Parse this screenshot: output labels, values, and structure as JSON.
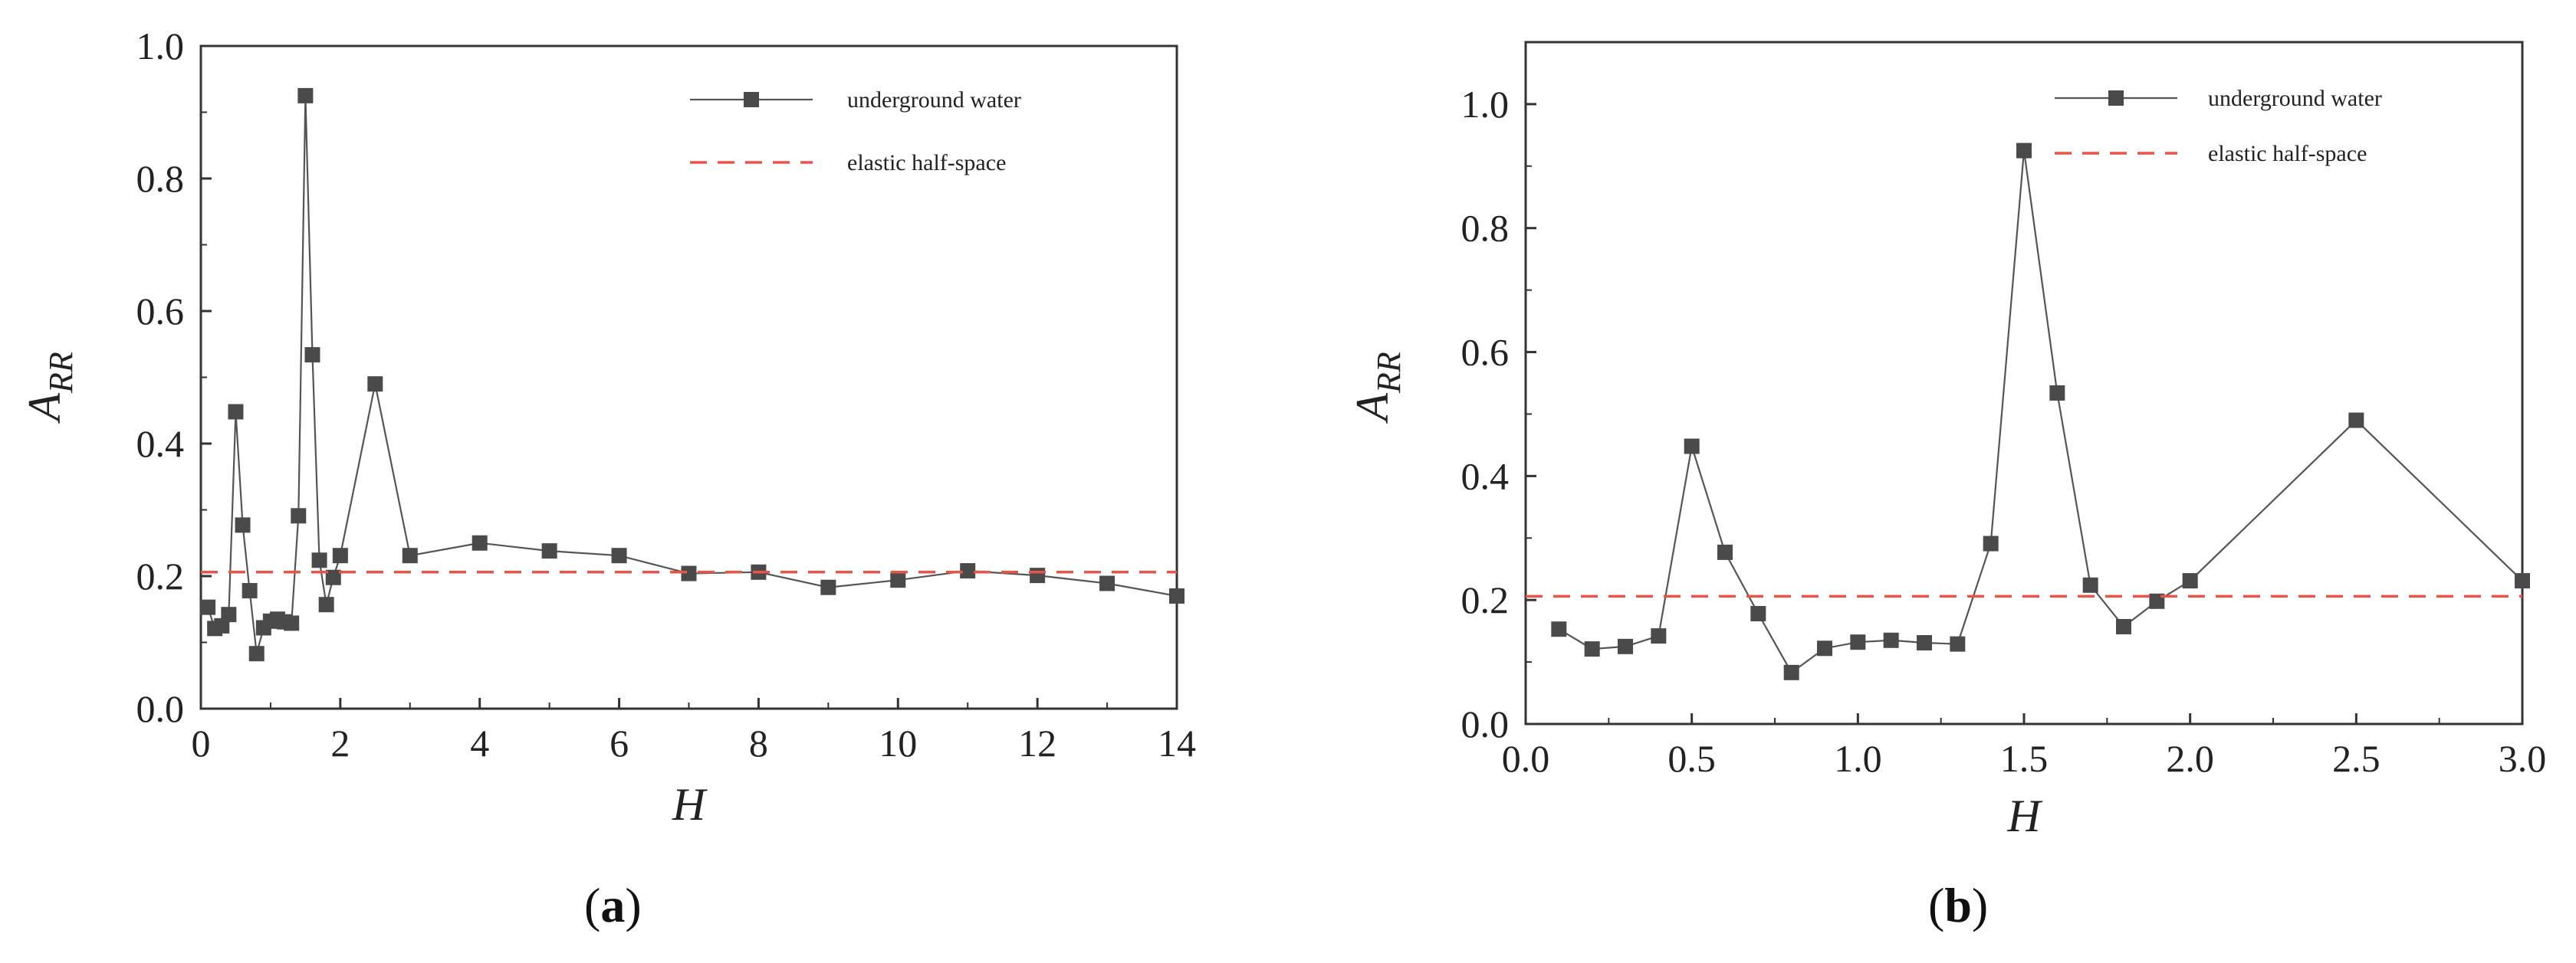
{
  "chart_data": [
    {
      "type": "line",
      "caption_letter": "a",
      "xlabel": "H",
      "ylabel_main": "A",
      "ylabel_sub": "RR",
      "xlim": [
        0,
        14
      ],
      "ylim": [
        0,
        1.0
      ],
      "xticks": [
        0,
        2,
        4,
        6,
        8,
        10,
        12,
        14
      ],
      "yticks": [
        0.0,
        0.2,
        0.4,
        0.6,
        0.8,
        1.0
      ],
      "xtick_labels": [
        "0",
        "2",
        "4",
        "6",
        "8",
        "10",
        "12",
        "14"
      ],
      "ytick_labels": [
        "0.0",
        "0.2",
        "0.4",
        "0.6",
        "0.8",
        "1.0"
      ],
      "grid": false,
      "legend_position": "top-right",
      "series": [
        {
          "name": "underground water",
          "style": "solid-square-markers",
          "color": "#555555",
          "x": [
            0.1,
            0.2,
            0.3,
            0.4,
            0.5,
            0.6,
            0.7,
            0.8,
            0.9,
            1.0,
            1.1,
            1.2,
            1.3,
            1.4,
            1.5,
            1.6,
            1.7,
            1.8,
            1.9,
            2.0,
            2.5,
            3,
            4,
            5,
            6,
            7,
            8,
            9,
            10,
            11,
            12,
            13,
            14
          ],
          "y": [
            0.153,
            0.121,
            0.125,
            0.142,
            0.448,
            0.277,
            0.178,
            0.083,
            0.122,
            0.132,
            0.135,
            0.131,
            0.129,
            0.291,
            0.925,
            0.534,
            0.224,
            0.157,
            0.198,
            0.231,
            0.49,
            0.231,
            0.25,
            0.238,
            0.231,
            0.204,
            0.206,
            0.183,
            0.194,
            0.208,
            0.201,
            0.189,
            0.17
          ]
        },
        {
          "name": "elastic half-space",
          "style": "dashed",
          "color": "#e8534a",
          "x": [
            0,
            14
          ],
          "y": [
            0.206,
            0.206
          ]
        }
      ]
    },
    {
      "type": "line",
      "caption_letter": "b",
      "xlabel": "H",
      "ylabel_main": "A",
      "ylabel_sub": "RR",
      "xlim": [
        0,
        3.0
      ],
      "ylim": [
        0,
        1.1
      ],
      "xticks": [
        0.0,
        0.5,
        1.0,
        1.5,
        2.0,
        2.5,
        3.0
      ],
      "yticks": [
        0.0,
        0.2,
        0.4,
        0.6,
        0.8,
        1.0
      ],
      "xtick_labels": [
        "0.0",
        "0.5",
        "1.0",
        "1.5",
        "2.0",
        "2.5",
        "3.0"
      ],
      "ytick_labels": [
        "0.0",
        "0.2",
        "0.4",
        "0.6",
        "0.8",
        "1.0"
      ],
      "grid": false,
      "legend_position": "top-right",
      "series": [
        {
          "name": "underground water",
          "style": "solid-square-markers",
          "color": "#555555",
          "x": [
            0.1,
            0.2,
            0.3,
            0.4,
            0.5,
            0.6,
            0.7,
            0.8,
            0.9,
            1.0,
            1.1,
            1.2,
            1.3,
            1.4,
            1.5,
            1.6,
            1.7,
            1.8,
            1.9,
            2.0,
            2.5,
            3.0
          ],
          "y": [
            0.153,
            0.121,
            0.125,
            0.142,
            0.448,
            0.277,
            0.178,
            0.083,
            0.122,
            0.132,
            0.135,
            0.131,
            0.129,
            0.291,
            0.925,
            0.534,
            0.224,
            0.157,
            0.198,
            0.231,
            0.49,
            0.231
          ]
        },
        {
          "name": "elastic half-space",
          "style": "dashed",
          "color": "#e8534a",
          "x": [
            0,
            3.0
          ],
          "y": [
            0.206,
            0.206
          ]
        }
      ]
    }
  ]
}
